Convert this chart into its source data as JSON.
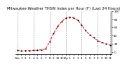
{
  "title": "Milwaukee Weather THSW Index per Hour (F) (Last 24 Hours)",
  "x_values": [
    0,
    1,
    2,
    3,
    4,
    5,
    6,
    7,
    8,
    9,
    10,
    11,
    12,
    13,
    14,
    15,
    16,
    17,
    18,
    19,
    20,
    21,
    22,
    23
  ],
  "y_values": [
    5,
    3,
    4,
    4,
    5,
    5,
    6,
    8,
    25,
    45,
    62,
    74,
    82,
    85,
    83,
    78,
    65,
    52,
    42,
    35,
    28,
    24,
    20,
    18
  ],
  "line_color": "#ff0000",
  "marker_color": "#000000",
  "background_color": "#ffffff",
  "plot_bg_color": "#ffffff",
  "grid_color": "#888888",
  "title_color": "#000000",
  "title_fontsize": 3.8,
  "tick_fontsize": 3.0,
  "ylim": [
    -5,
    100
  ],
  "yticks": [
    0,
    20,
    40,
    60,
    80,
    100
  ],
  "ytick_labels": [
    "0",
    "20",
    "40",
    "60",
    "80",
    "100"
  ],
  "x_tick_labels": [
    "12a",
    "1",
    "2",
    "3",
    "4",
    "5",
    "6",
    "7",
    "8",
    "9",
    "10",
    "11",
    "12p",
    "1",
    "2",
    "3",
    "4",
    "5",
    "6",
    "7",
    "8",
    "9",
    "10",
    "11"
  ],
  "vgrid_positions": [
    0,
    4,
    8,
    12,
    16,
    20,
    23
  ]
}
